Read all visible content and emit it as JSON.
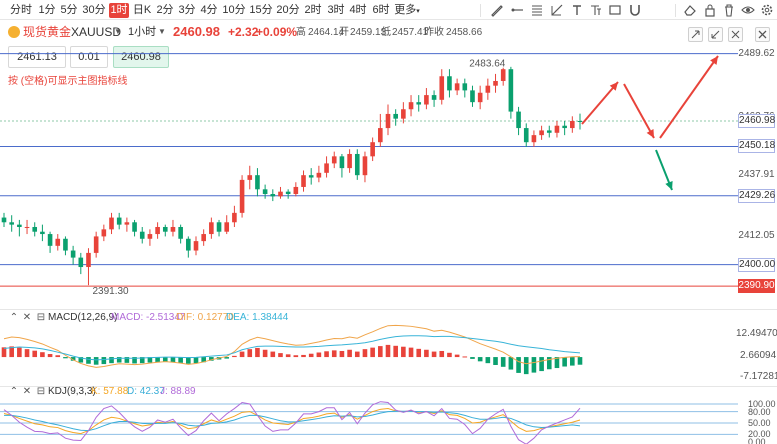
{
  "toolbar": {
    "timeframes": [
      "分时",
      "1分",
      "5分",
      "30分",
      "1时",
      "日K",
      "2分",
      "3分",
      "4分",
      "10分",
      "15分",
      "20分",
      "2时",
      "3时",
      "4时",
      "6时",
      "更多"
    ],
    "active_timeframe": "1时",
    "right_icons": [
      "pen-icon",
      "ray-icon",
      "pattern-icon",
      "ruler-icon",
      "text-icon",
      "fib-icon",
      "rect-icon",
      "magnet-icon",
      "eraser-icon",
      "lock-icon",
      "trash-icon",
      "eye-icon",
      "settings-icon"
    ]
  },
  "header": {
    "symbol_name": "现货黄金",
    "symbol_code": "XAUUSD",
    "timeframe": "1小时",
    "last_price": "2460.98",
    "change": "+2.32",
    "change_pct": "+0.09%",
    "high_label": "高",
    "high": "2464.14",
    "open_label": "开",
    "open": "2459.13",
    "low_label": "低",
    "low": "2457.41",
    "prev_close_label": "昨收",
    "prev_close": "2458.66"
  },
  "trade": {
    "sell": "2461.13",
    "quantity": "0.01",
    "buy": "2460.98"
  },
  "hint": "按 (空格)可显示主图指标线",
  "colors": {
    "up": "#e8433a",
    "down": "#0aa06e",
    "blue_line": "#4b6ccb",
    "red_line": "#e8433a",
    "macd_line": "#f0a54a",
    "dea_line": "#38b4d8",
    "k_line": "#f5a623",
    "d_line": "#3aaed8",
    "j_line": "#b06ad8"
  },
  "price_axis": {
    "labels": [
      "2489.62",
      "2462.76",
      "2450.18",
      "2437.91",
      "2429.26",
      "2412.05",
      "2400.00",
      "2390.90"
    ],
    "tags": [
      {
        "label": "2489.62",
        "style": "plain"
      },
      {
        "label": "2462.76",
        "style": "plain"
      },
      {
        "label": "2460.98",
        "style": "boxed"
      },
      {
        "label": "2450.18",
        "style": "boxed"
      },
      {
        "label": "2437.91",
        "style": "plain"
      },
      {
        "label": "2429.26",
        "style": "boxed"
      },
      {
        "label": "2412.05",
        "style": "plain"
      },
      {
        "label": "2400.00",
        "style": "boxed"
      },
      {
        "label": "2390.90",
        "style": "red"
      }
    ]
  },
  "annotations": {
    "high_label": "2483.64",
    "low_label": "2391.30"
  },
  "macd": {
    "title": "MACD(12,26,9)",
    "macd_label": "MACD: -2.51347",
    "dif_label": "DIF: 0.12770",
    "dea_label": "DEA: 1.38444",
    "axis": [
      "12.49470",
      "2.66094",
      "-7.17281"
    ]
  },
  "kdj": {
    "title": "KDJ(9,3,3)",
    "k_label": "K: 57.88",
    "d_label": "D: 42.37",
    "j_label": "J: 88.89",
    "axis": [
      "100.00",
      "80.00",
      "50.00",
      "20.00",
      "0.00"
    ]
  },
  "chart_data": {
    "type": "candlestick",
    "y_range": [
      2385,
      2492
    ],
    "horizontal_lines": [
      2489.62,
      2450.18,
      2429.26,
      2400.0,
      2390.9
    ],
    "candles": [
      [
        2420,
        2418,
        2422,
        2416
      ],
      [
        2418,
        2417,
        2421,
        2414
      ],
      [
        2417,
        2416,
        2419,
        2412
      ],
      [
        2416,
        2416,
        2419,
        2413
      ],
      [
        2416,
        2414,
        2418,
        2412
      ],
      [
        2414,
        2413,
        2417,
        2410
      ],
      [
        2413,
        2408,
        2414,
        2405
      ],
      [
        2408,
        2411,
        2413,
        2406
      ],
      [
        2411,
        2406,
        2412,
        2404
      ],
      [
        2406,
        2403,
        2408,
        2400
      ],
      [
        2403,
        2399,
        2405,
        2396
      ],
      [
        2399,
        2405,
        2407,
        2391.3
      ],
      [
        2405,
        2412,
        2414,
        2403
      ],
      [
        2412,
        2415,
        2417,
        2410
      ],
      [
        2415,
        2420,
        2422,
        2413
      ],
      [
        2420,
        2417,
        2422,
        2415
      ],
      [
        2417,
        2418,
        2420,
        2414
      ],
      [
        2418,
        2414,
        2419,
        2412
      ],
      [
        2414,
        2411,
        2416,
        2409
      ],
      [
        2411,
        2413,
        2415,
        2408
      ],
      [
        2413,
        2416,
        2418,
        2411
      ],
      [
        2416,
        2414,
        2417,
        2412
      ],
      [
        2414,
        2416,
        2419,
        2412
      ],
      [
        2416,
        2411,
        2417,
        2409
      ],
      [
        2411,
        2406,
        2412,
        2403
      ],
      [
        2406,
        2410,
        2412,
        2404
      ],
      [
        2410,
        2413,
        2415,
        2408
      ],
      [
        2413,
        2418,
        2420,
        2411
      ],
      [
        2418,
        2414,
        2419,
        2412
      ],
      [
        2414,
        2418,
        2421,
        2413
      ],
      [
        2418,
        2422,
        2425,
        2416
      ],
      [
        2422,
        2436,
        2438,
        2420
      ],
      [
        2436,
        2438,
        2442,
        2432
      ],
      [
        2438,
        2432,
        2441,
        2429
      ],
      [
        2432,
        2430,
        2434,
        2428
      ],
      [
        2430,
        2429,
        2432,
        2427
      ],
      [
        2429,
        2431,
        2433,
        2428
      ],
      [
        2431,
        2430,
        2432,
        2428
      ],
      [
        2430,
        2433,
        2435,
        2429
      ],
      [
        2433,
        2438,
        2440,
        2431
      ],
      [
        2438,
        2437,
        2441,
        2434
      ],
      [
        2437,
        2439,
        2442,
        2435
      ],
      [
        2439,
        2443,
        2446,
        2437
      ],
      [
        2443,
        2446,
        2448,
        2441
      ],
      [
        2446,
        2441,
        2447,
        2437
      ],
      [
        2441,
        2447,
        2449,
        2439
      ],
      [
        2447,
        2438,
        2449,
        2436
      ],
      [
        2438,
        2446,
        2448,
        2435
      ],
      [
        2446,
        2452,
        2454,
        2444
      ],
      [
        2452,
        2458,
        2464,
        2450
      ],
      [
        2458,
        2464,
        2468,
        2455
      ],
      [
        2464,
        2462,
        2466,
        2459
      ],
      [
        2462,
        2466,
        2469,
        2460
      ],
      [
        2466,
        2469,
        2472,
        2463
      ],
      [
        2469,
        2468,
        2472,
        2465
      ],
      [
        2468,
        2472,
        2475,
        2466
      ],
      [
        2472,
        2470,
        2474,
        2467
      ],
      [
        2470,
        2480,
        2483,
        2468
      ],
      [
        2480,
        2474,
        2483,
        2471
      ],
      [
        2474,
        2477,
        2479,
        2472
      ],
      [
        2477,
        2474,
        2479,
        2471
      ],
      [
        2474,
        2469,
        2476,
        2467
      ],
      [
        2469,
        2473,
        2476,
        2466
      ],
      [
        2473,
        2476,
        2479,
        2470
      ],
      [
        2476,
        2478,
        2481,
        2473
      ],
      [
        2478,
        2483,
        2483.64,
        2476
      ],
      [
        2483,
        2465,
        2484,
        2462
      ],
      [
        2465,
        2458,
        2467,
        2455
      ],
      [
        2458,
        2452,
        2460,
        2450
      ],
      [
        2452,
        2455,
        2457,
        2450
      ],
      [
        2455,
        2457,
        2459,
        2453
      ],
      [
        2457,
        2456,
        2459,
        2454
      ],
      [
        2456,
        2459,
        2461,
        2454
      ],
      [
        2459,
        2458,
        2461,
        2455
      ],
      [
        2458,
        2461,
        2463,
        2456
      ],
      [
        2461,
        2460.98,
        2464.14,
        2457.41
      ]
    ],
    "macd_hist": [
      3.2,
      3.5,
      3.1,
      2.6,
      2.1,
      1.6,
      1.0,
      0.6,
      -0.4,
      -1.2,
      -1.8,
      -2.2,
      -2.5,
      -2.3,
      -2.0,
      -1.8,
      -1.9,
      -2.1,
      -2.0,
      -1.8,
      -1.6,
      -1.5,
      -1.7,
      -1.9,
      -2.2,
      -2.0,
      -1.7,
      -1.2,
      -0.8,
      -0.5,
      0.4,
      1.8,
      2.6,
      3.0,
      2.4,
      1.8,
      1.3,
      0.9,
      0.6,
      0.7,
      1.1,
      1.5,
      1.9,
      2.2,
      2.0,
      2.4,
      1.8,
      2.6,
      3.1,
      3.6,
      4.0,
      3.7,
      3.4,
      3.1,
      2.7,
      2.4,
      1.8,
      2.0,
      1.4,
      0.8,
      0.2,
      -0.6,
      -1.4,
      -2.0,
      -2.6,
      -3.2,
      -4.1,
      -5.2,
      -5.6,
      -5.1,
      -4.6,
      -4.0,
      -3.6,
      -3.1,
      -2.8,
      -2.51
    ],
    "macd_dif": [
      6.0,
      6.6,
      6.4,
      5.8,
      5.1,
      4.3,
      3.2,
      2.2,
      0.6,
      -0.9,
      -2.1,
      -2.9,
      -3.4,
      -3.1,
      -2.6,
      -2.2,
      -2.3,
      -2.5,
      -2.3,
      -2.0,
      -1.7,
      -1.5,
      -1.7,
      -2.0,
      -2.4,
      -2.1,
      -1.6,
      -0.9,
      -0.3,
      0.2,
      1.8,
      4.2,
      5.6,
      6.5,
      6.0,
      5.4,
      4.8,
      4.3,
      3.9,
      4.0,
      4.5,
      5.0,
      5.6,
      6.1,
      6.0,
      6.6,
      6.2,
      7.3,
      8.3,
      9.4,
      10.3,
      10.4,
      10.3,
      10.1,
      9.7,
      9.3,
      8.5,
      8.8,
      8.2,
      7.4,
      6.6,
      5.5,
      4.4,
      3.5,
      2.6,
      1.6,
      0.1,
      -1.5,
      -2.2,
      -1.8,
      -1.3,
      -0.8,
      -0.4,
      -0.1,
      0.1,
      0.13
    ],
    "macd_dea": [
      2.8,
      3.1,
      3.3,
      3.2,
      3.0,
      2.7,
      2.2,
      1.6,
      1.0,
      0.3,
      -0.3,
      -0.7,
      -0.9,
      -0.8,
      -0.6,
      -0.4,
      -0.4,
      -0.4,
      -0.3,
      -0.2,
      -0.1,
      0.0,
      0.0,
      -0.1,
      -0.2,
      -0.1,
      0.1,
      0.3,
      0.5,
      0.7,
      1.4,
      2.4,
      3.0,
      3.5,
      3.6,
      3.6,
      3.5,
      3.4,
      3.3,
      3.3,
      3.4,
      3.5,
      3.7,
      3.9,
      4.0,
      4.2,
      4.4,
      4.7,
      5.2,
      5.8,
      6.3,
      6.7,
      6.9,
      7.0,
      7.0,
      6.9,
      6.7,
      6.8,
      6.8,
      6.6,
      6.4,
      6.1,
      5.8,
      5.5,
      5.2,
      4.8,
      4.2,
      3.7,
      3.4,
      3.1,
      2.8,
      2.4,
      2.1,
      1.8,
      1.6,
      1.38
    ],
    "kdj_k": [
      75,
      70,
      62,
      55,
      48,
      45,
      40,
      38,
      30,
      25,
      22,
      30,
      45,
      58,
      65,
      62,
      55,
      48,
      42,
      45,
      52,
      50,
      54,
      45,
      35,
      38,
      48,
      58,
      52,
      60,
      68,
      78,
      80,
      70,
      58,
      50,
      48,
      46,
      52,
      62,
      64,
      68,
      74,
      76,
      65,
      72,
      60,
      70,
      80,
      86,
      88,
      82,
      80,
      82,
      78,
      80,
      75,
      82,
      72,
      70,
      62,
      50,
      52,
      60,
      66,
      72,
      55,
      38,
      28,
      30,
      36,
      40,
      44,
      48,
      52,
      57.88
    ],
    "kdj_d": [
      70,
      70,
      67,
      63,
      58,
      54,
      49,
      45,
      40,
      35,
      31,
      30,
      35,
      43,
      50,
      54,
      54,
      52,
      49,
      48,
      49,
      49,
      51,
      49,
      44,
      42,
      44,
      49,
      50,
      53,
      58,
      65,
      70,
      70,
      66,
      61,
      56,
      53,
      53,
      56,
      59,
      62,
      66,
      69,
      68,
      69,
      66,
      67,
      71,
      76,
      80,
      81,
      81,
      81,
      80,
      80,
      78,
      79,
      77,
      75,
      70,
      64,
      60,
      60,
      62,
      65,
      62,
      54,
      45,
      40,
      38,
      39,
      41,
      43,
      45,
      42.37
    ],
    "kdj_j": [
      85,
      70,
      52,
      39,
      28,
      27,
      22,
      24,
      10,
      5,
      4,
      30,
      65,
      88,
      95,
      78,
      57,
      40,
      28,
      39,
      58,
      52,
      60,
      37,
      17,
      30,
      56,
      76,
      56,
      74,
      88,
      104,
      100,
      70,
      42,
      28,
      32,
      32,
      50,
      74,
      74,
      80,
      90,
      90,
      59,
      78,
      48,
      76,
      98,
      106,
      104,
      84,
      78,
      84,
      74,
      80,
      69,
      88,
      62,
      60,
      46,
      22,
      36,
      60,
      74,
      86,
      41,
      6,
      -6,
      10,
      32,
      42,
      50,
      58,
      66,
      88.89
    ]
  }
}
